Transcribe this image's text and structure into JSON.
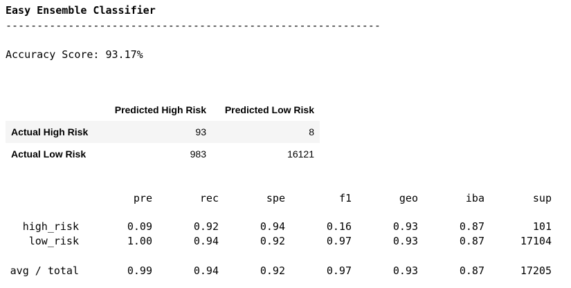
{
  "title": "Easy Ensemble Classifier",
  "divider": "------------------------------------------------------------",
  "accuracy": "Accuracy Score: 93.17%",
  "confusion_matrix": {
    "columns": [
      "",
      "Predicted High Risk",
      "Predicted Low Risk"
    ],
    "rows": [
      {
        "label": "Actual High Risk",
        "values": [
          "93",
          "8"
        ]
      },
      {
        "label": "Actual Low Risk",
        "values": [
          "983",
          "16121"
        ]
      }
    ]
  },
  "report": {
    "headers": [
      "pre",
      "rec",
      "spe",
      "f1",
      "geo",
      "iba",
      "sup"
    ],
    "rows": [
      {
        "label": "high_risk",
        "values": [
          "0.09",
          "0.92",
          "0.94",
          "0.16",
          "0.93",
          "0.87",
          "101"
        ]
      },
      {
        "label": "low_risk",
        "values": [
          "1.00",
          "0.94",
          "0.92",
          "0.97",
          "0.93",
          "0.87",
          "17104"
        ]
      },
      {
        "label": "avg / total",
        "values": [
          "0.99",
          "0.94",
          "0.92",
          "0.97",
          "0.93",
          "0.87",
          "17205"
        ]
      }
    ]
  }
}
